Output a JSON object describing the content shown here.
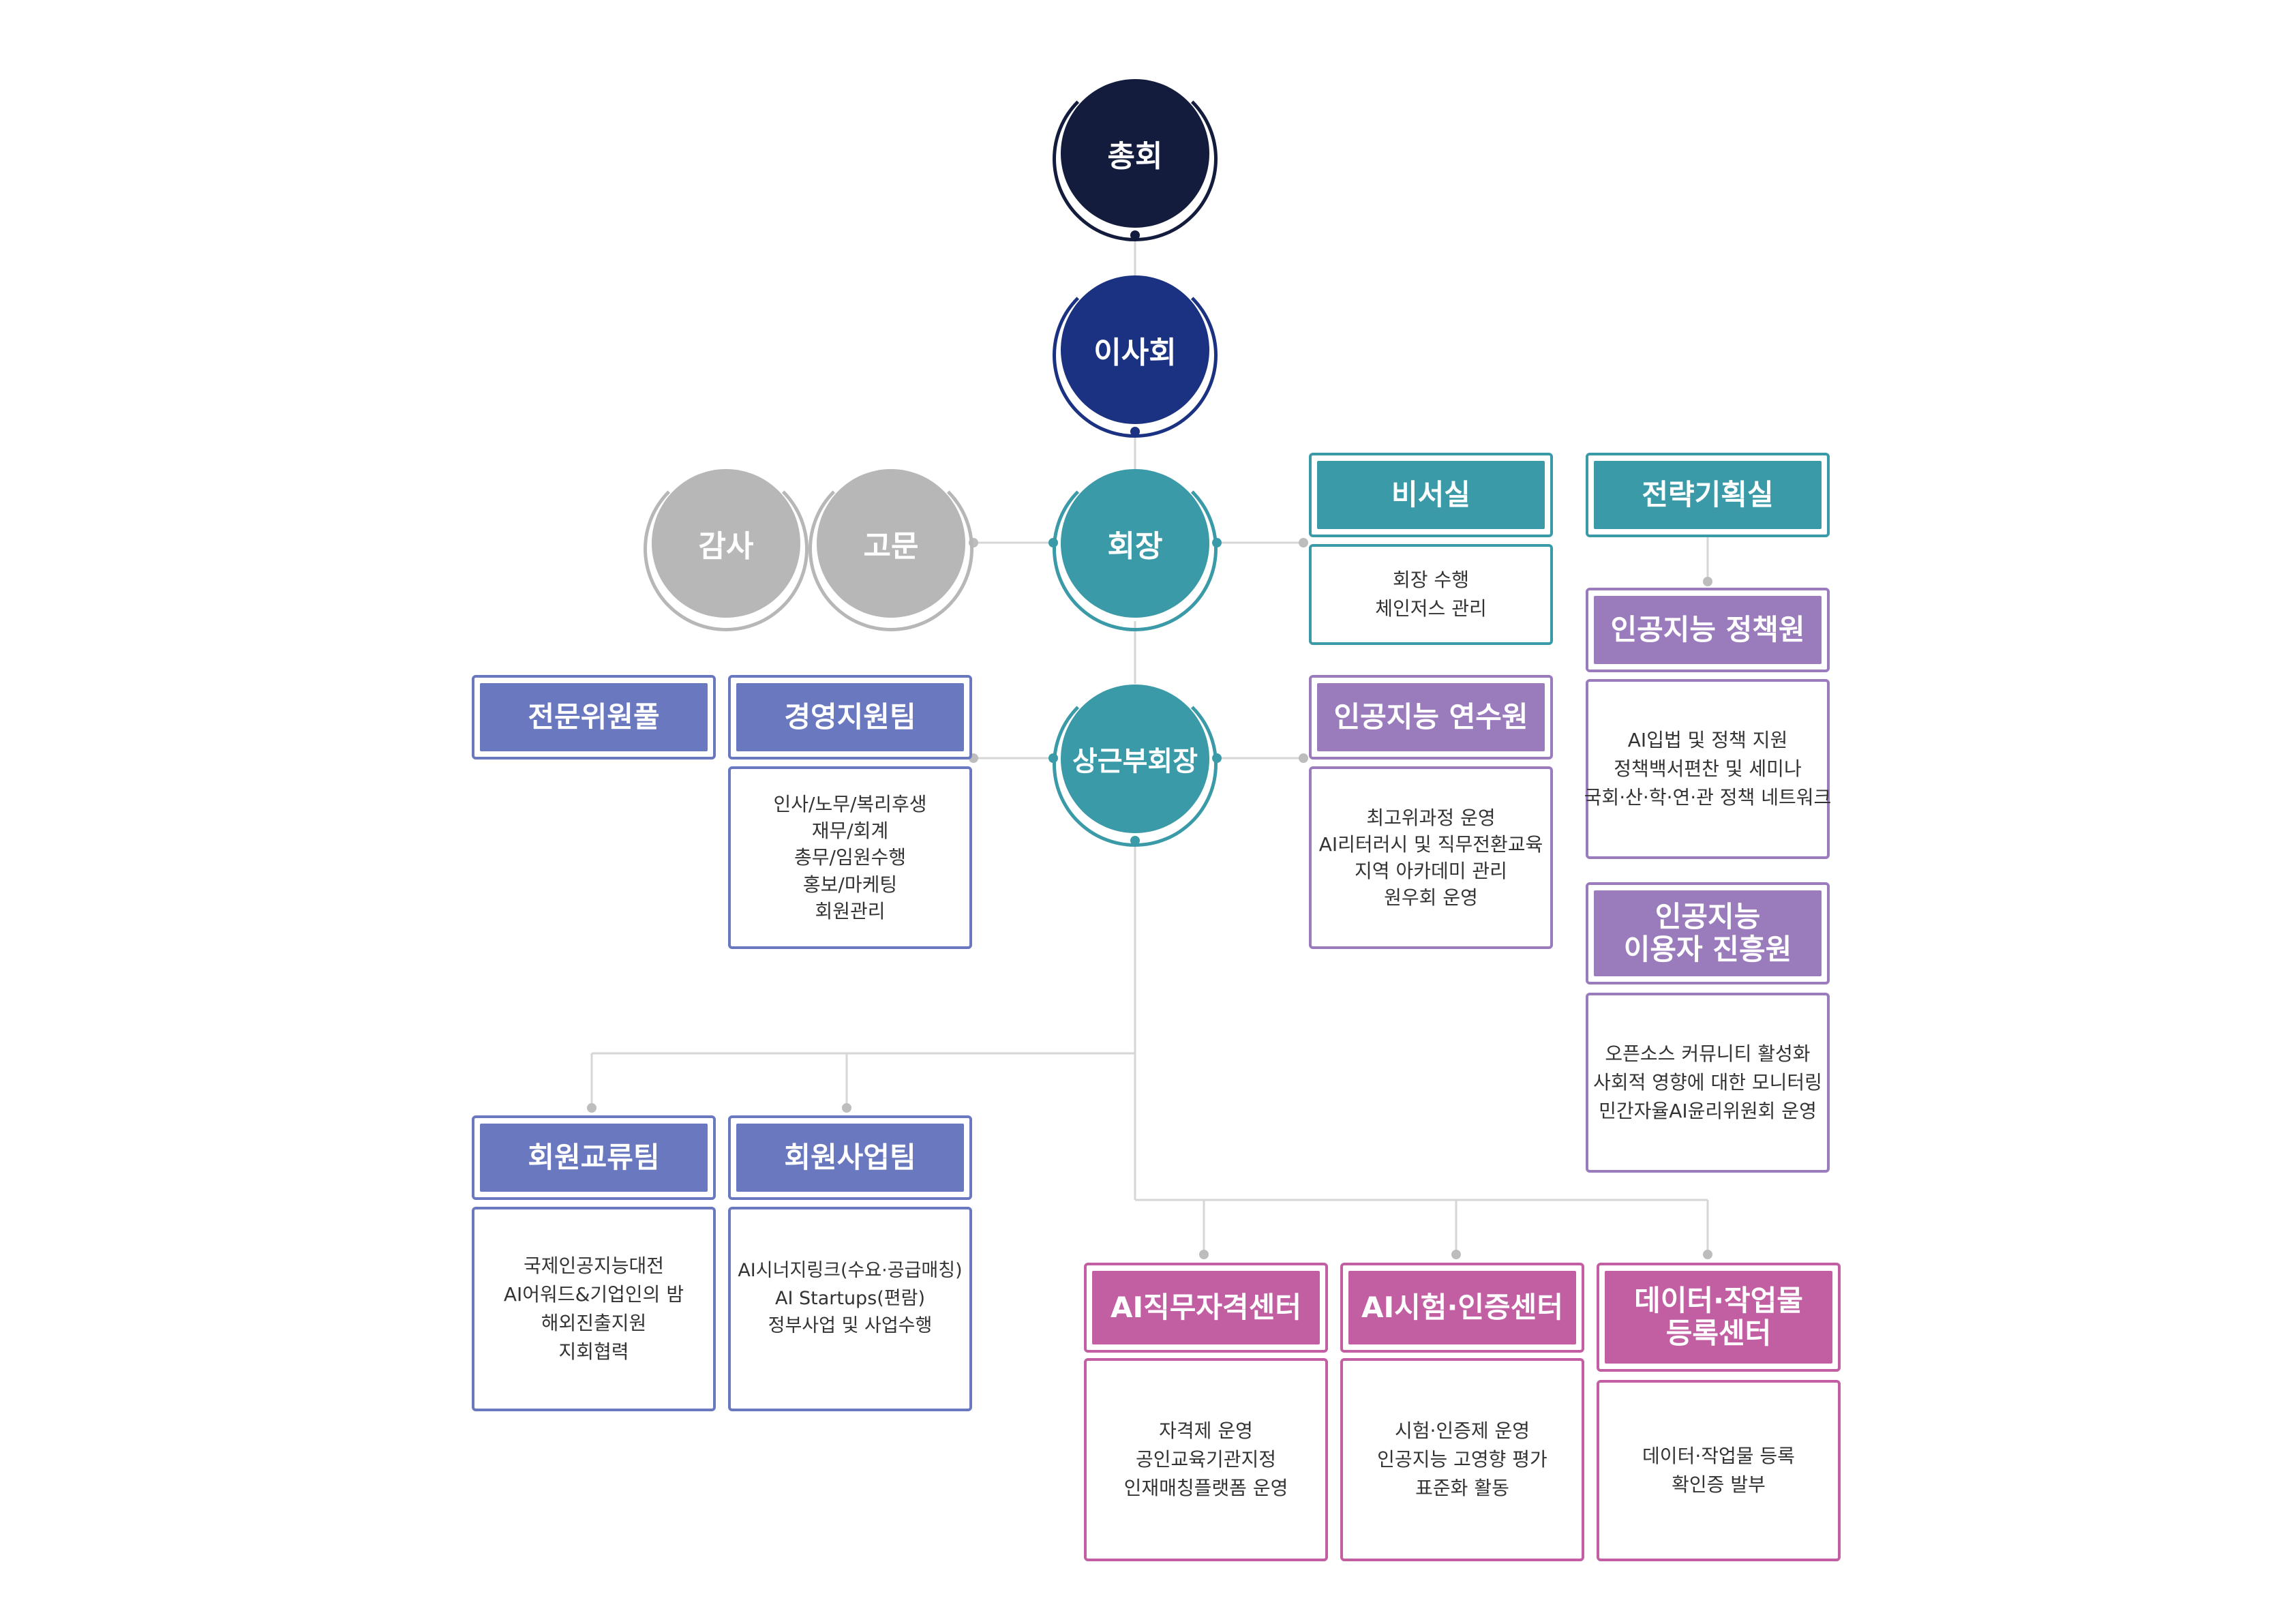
{
  "nodes": {
    "general_assembly": "총회",
    "board": "이사회",
    "chairman": "회장",
    "audit": "감사",
    "advisor": "고문",
    "vice_chairman": "상근부회장"
  },
  "secretariat": {
    "title": "비서실",
    "items": [
      "회장 수행",
      "체인저스 관리"
    ]
  },
  "strategy": {
    "title": "전략기획실"
  },
  "ai_policy": {
    "title": "인공지능 정책원",
    "items": [
      "AI입법 및 정책 지원",
      "정책백서편찬 및 세미나",
      "국회·산·학·연·관 정책 네트워크"
    ]
  },
  "ai_user": {
    "title": "인공지능\n이용자 진흥원",
    "items": [
      "오픈소스 커뮤니티 활성화",
      "사회적 영향에 대한 모니터링",
      "민간자율AI윤리위원회 운영"
    ]
  },
  "expert_pool": {
    "title": "전문위원풀"
  },
  "management": {
    "title": "경영지원팀",
    "items": [
      "인사/노무/복리후생",
      "재무/회계",
      "총무/임원수행",
      "홍보/마케팅",
      "회원관리"
    ]
  },
  "ai_training": {
    "title": "인공지능 연수원",
    "items": [
      "최고위과정 운영",
      "AI리터러시 및 직무전환교육",
      "지역 아카데미 관리",
      "원우회 운영"
    ]
  },
  "member_exchange": {
    "title": "회원교류팀",
    "items": [
      "국제인공지능대전",
      "AI어워드&기업인의 밤",
      "해외진출지원",
      "지회협력"
    ]
  },
  "member_business": {
    "title": "회원사업팀",
    "items": [
      "AI시너지링크(수요·공급매칭)",
      "AI Startups(편람)",
      "정부사업 및 사업수행"
    ]
  },
  "ai_cert": {
    "title": "AI직무자격센터",
    "items": [
      "자격제 운영",
      "공인교육기관지정",
      "인재매칭플랫폼 운영"
    ]
  },
  "ai_test": {
    "title": "AI시험·인증센터",
    "items": [
      "시험·인증제 운영",
      "인공지능 고영향 평가",
      "표준화 활동"
    ]
  },
  "data_reg": {
    "title": "데이터·작업물\n등록센터",
    "items": [
      "데이터·작업물 등록",
      "확인증 발부"
    ]
  },
  "colors": {
    "navy_dark": "#141c3d",
    "navy": "#1b3282",
    "teal": "#3a9aa7",
    "gray": "#b7b7b7",
    "purple": "#9a7cbd",
    "blue": "#6a78bf",
    "pink": "#c25fa3",
    "line": "#d0d0d0"
  }
}
